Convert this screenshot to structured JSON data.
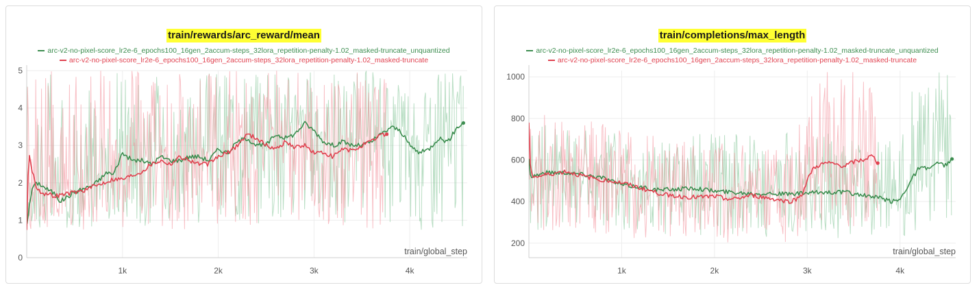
{
  "chart_data": [
    {
      "type": "line",
      "title": "train/rewards/arc_reward/mean",
      "xlabel": "train/global_step",
      "ylabel": "",
      "xlim": [
        0,
        4600
      ],
      "ylim": [
        0,
        5
      ],
      "x_ticks": [
        1000,
        2000,
        3000,
        4000
      ],
      "x_tick_labels": [
        "1k",
        "2k",
        "3k",
        "4k"
      ],
      "y_ticks": [
        0,
        1,
        2,
        3,
        4,
        5
      ],
      "y_tick_labels": [
        "0",
        "1",
        "2",
        "3",
        "4",
        "5"
      ],
      "series": [
        {
          "name": "arc-v2-no-pixel-score_lr2e-6_epochs100_16gen_2accum-steps_32lora_repetition-penalty-1.02_masked-truncate_unquantized",
          "color": "#3c8d4f",
          "band_color": "#7fc393",
          "x": [
            0,
            60,
            120,
            200,
            300,
            350,
            500,
            700,
            850,
            900,
            1000,
            1100,
            1200,
            1300,
            1400,
            1500,
            1600,
            1700,
            1800,
            1900,
            2000,
            2100,
            2200,
            2300,
            2400,
            2500,
            2600,
            2700,
            2800,
            2900,
            3000,
            3100,
            3200,
            3300,
            3400,
            3500,
            3600,
            3700,
            3760,
            3800,
            3900,
            4000,
            4100,
            4200,
            4300,
            4400,
            4500,
            4560
          ],
          "y": [
            0.9,
            1.9,
            2.0,
            1.85,
            1.7,
            1.5,
            1.75,
            1.95,
            2.3,
            2.2,
            2.8,
            2.6,
            2.6,
            2.5,
            2.7,
            2.6,
            2.6,
            2.7,
            2.7,
            2.6,
            2.9,
            2.8,
            3.1,
            3.2,
            3.0,
            3.0,
            3.3,
            3.2,
            3.3,
            3.6,
            3.4,
            3.1,
            3.0,
            3.1,
            3.0,
            3.0,
            3.1,
            3.3,
            3.4,
            3.5,
            3.4,
            3.0,
            2.8,
            2.9,
            3.2,
            3.1,
            3.5,
            3.6
          ],
          "band_low": [
            0.8,
            0.75,
            0.75,
            0.75,
            0.8,
            0.8,
            0.8,
            0.8,
            0.85,
            0.85,
            0.85,
            0.85,
            0.85,
            0.85,
            0.85,
            0.85,
            0.85,
            0.85,
            0.85,
            0.85,
            0.85,
            0.85,
            0.85,
            0.9,
            0.9,
            0.9,
            0.9,
            0.9,
            0.9,
            0.9,
            0.9,
            0.9,
            0.9,
            0.9,
            0.9,
            0.9,
            0.9,
            0.9,
            1.0,
            0.9,
            0.9,
            0.9,
            0.7,
            0.8,
            0.8,
            0.8,
            0.8,
            0.6
          ],
          "band_high": [
            5.0,
            5.0,
            5.0,
            5.0,
            5.0,
            5.0,
            5.0,
            5.0,
            5.0,
            5.0,
            5.0,
            5.0,
            5.0,
            5.0,
            5.0,
            5.0,
            5.0,
            5.0,
            5.0,
            5.0,
            5.0,
            5.0,
            5.0,
            5.0,
            5.0,
            5.0,
            5.0,
            5.0,
            5.0,
            5.0,
            5.0,
            5.0,
            5.0,
            5.0,
            5.0,
            5.0,
            5.0,
            5.0,
            5.0,
            5.0,
            5.0,
            5.0,
            5.0,
            5.0,
            5.0,
            5.0,
            5.0,
            5.0
          ]
        },
        {
          "name": "arc-v2-no-pixel-score_lr2e-6_epochs100_16gen_2accum-steps_32lora_repetition-penalty-1.02_masked-truncate",
          "color": "#e0414f",
          "band_color": "#f28a96",
          "x": [
            0,
            20,
            50,
            100,
            150,
            200,
            300,
            400,
            500,
            600,
            700,
            800,
            900,
            1000,
            1100,
            1200,
            1300,
            1400,
            1500,
            1600,
            1700,
            1800,
            1900,
            2000,
            2100,
            2200,
            2300,
            2400,
            2500,
            2600,
            2700,
            2800,
            2900,
            3000,
            3100,
            3200,
            3300,
            3400,
            3500,
            3600,
            3700,
            3760
          ],
          "y": [
            0.75,
            2.8,
            2.4,
            1.9,
            1.75,
            1.7,
            1.65,
            1.7,
            1.75,
            1.8,
            1.9,
            2.0,
            2.1,
            2.1,
            2.2,
            2.3,
            2.5,
            2.6,
            2.5,
            2.7,
            2.6,
            2.5,
            2.5,
            2.7,
            2.8,
            3.0,
            3.3,
            3.2,
            3.0,
            2.9,
            3.1,
            2.95,
            3.0,
            2.8,
            2.8,
            2.7,
            2.9,
            2.85,
            3.0,
            3.1,
            3.3,
            3.3
          ],
          "band_low": [
            0.5,
            0.6,
            0.7,
            0.75,
            0.75,
            0.75,
            0.75,
            0.75,
            0.75,
            0.75,
            0.75,
            0.75,
            0.75,
            0.75,
            0.75,
            0.75,
            0.75,
            0.75,
            0.75,
            0.75,
            0.75,
            0.75,
            0.75,
            0.75,
            0.75,
            0.75,
            0.75,
            0.75,
            0.75,
            0.75,
            0.75,
            0.75,
            0.75,
            0.75,
            0.75,
            0.75,
            0.75,
            0.75,
            0.75,
            0.75,
            0.75,
            0.8
          ],
          "band_high": [
            5.0,
            5.0,
            5.0,
            5.0,
            5.0,
            5.0,
            5.0,
            5.0,
            5.0,
            5.0,
            5.0,
            5.0,
            5.0,
            5.0,
            5.0,
            5.0,
            5.0,
            5.0,
            5.0,
            5.0,
            5.0,
            5.0,
            5.0,
            5.0,
            5.0,
            5.0,
            5.0,
            5.0,
            5.0,
            5.0,
            5.0,
            5.0,
            5.0,
            5.0,
            5.0,
            5.0,
            5.0,
            5.0,
            5.0,
            5.0,
            5.0,
            5.0
          ]
        }
      ]
    },
    {
      "type": "line",
      "title": "train/completions/max_length",
      "xlabel": "train/global_step",
      "ylabel": "",
      "xlim": [
        0,
        4600
      ],
      "ylim": [
        130,
        1030
      ],
      "x_ticks": [
        1000,
        2000,
        3000,
        4000
      ],
      "x_tick_labels": [
        "1k",
        "2k",
        "3k",
        "4k"
      ],
      "y_ticks": [
        200,
        400,
        600,
        800,
        1000
      ],
      "y_tick_labels": [
        "200",
        "400",
        "600",
        "800",
        "1000"
      ],
      "series": [
        {
          "name": "arc-v2-no-pixel-score_lr2e-6_epochs100_16gen_2accum-steps_32lora_repetition-penalty-1.02_masked-truncate_unquantized",
          "color": "#3c8d4f",
          "band_color": "#7fc393",
          "x": [
            0,
            20,
            100,
            200,
            400,
            600,
            800,
            1000,
            1200,
            1400,
            1600,
            1800,
            2000,
            2200,
            2400,
            2600,
            2800,
            3000,
            3200,
            3400,
            3600,
            3800,
            3900,
            4000,
            4100,
            4200,
            4300,
            4400,
            4500,
            4560
          ],
          "y": [
            600,
            520,
            530,
            540,
            540,
            530,
            515,
            480,
            470,
            455,
            460,
            465,
            450,
            445,
            440,
            440,
            435,
            440,
            445,
            445,
            430,
            415,
            400,
            410,
            490,
            560,
            560,
            580,
            575,
            605
          ],
          "band_low": [
            300,
            260,
            260,
            260,
            260,
            260,
            260,
            250,
            250,
            240,
            240,
            240,
            230,
            230,
            230,
            230,
            230,
            220,
            220,
            220,
            220,
            220,
            210,
            210,
            230,
            250,
            260,
            260,
            250,
            200
          ],
          "band_high": [
            1030,
            850,
            840,
            820,
            800,
            780,
            770,
            760,
            750,
            740,
            740,
            740,
            740,
            740,
            730,
            730,
            730,
            730,
            730,
            730,
            730,
            720,
            700,
            700,
            900,
            1030,
            1030,
            1030,
            1030,
            1030
          ]
        },
        {
          "name": "arc-v2-no-pixel-score_lr2e-6_epochs100_16gen_2accum-steps_32lora_repetition-penalty-1.02_masked-truncate",
          "color": "#e0414f",
          "band_color": "#f28a96",
          "x": [
            0,
            10,
            40,
            100,
            200,
            400,
            600,
            800,
            1000,
            1200,
            1400,
            1600,
            1800,
            2000,
            2200,
            2400,
            2600,
            2800,
            2880,
            2950,
            3000,
            3050,
            3100,
            3200,
            3300,
            3400,
            3500,
            3600,
            3700,
            3760
          ],
          "y": [
            770,
            600,
            520,
            520,
            530,
            545,
            520,
            505,
            490,
            465,
            440,
            425,
            420,
            425,
            410,
            430,
            415,
            400,
            410,
            440,
            500,
            550,
            570,
            585,
            580,
            570,
            590,
            600,
            620,
            585
          ],
          "band_low": [
            320,
            260,
            260,
            260,
            260,
            250,
            250,
            240,
            230,
            220,
            220,
            210,
            200,
            200,
            200,
            200,
            200,
            200,
            200,
            220,
            240,
            260,
            270,
            280,
            280,
            280,
            280,
            280,
            270,
            250
          ],
          "band_high": [
            1030,
            980,
            880,
            830,
            820,
            800,
            790,
            780,
            760,
            740,
            720,
            700,
            690,
            680,
            680,
            680,
            680,
            690,
            900,
            1030,
            1030,
            1030,
            1030,
            1030,
            1030,
            1030,
            1030,
            1030,
            1030,
            1030
          ]
        }
      ]
    }
  ]
}
